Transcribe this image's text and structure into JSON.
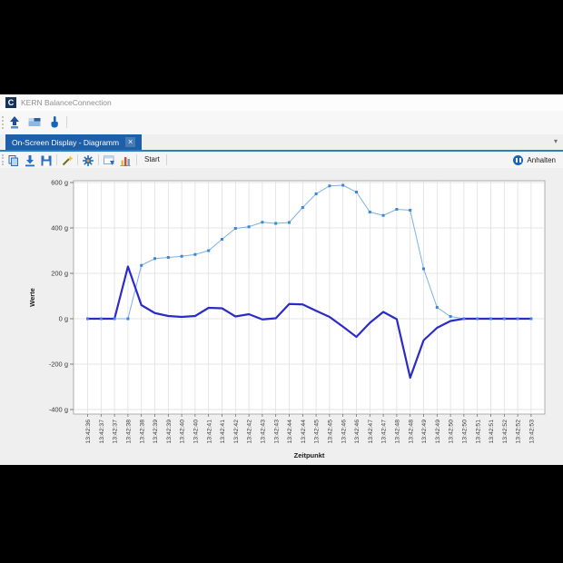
{
  "window": {
    "title": "KERN BalanceConnection",
    "logo_letter": "C"
  },
  "theme": {
    "tab_active_blue": "#1d5fa8",
    "tab_underline_blue": "#2e7cc4",
    "accent_blue": "#1565c0",
    "panel_gray": "#efefef"
  },
  "toolbar_main": {
    "icons": [
      {
        "name": "scale-icon"
      },
      {
        "name": "display-icon"
      },
      {
        "name": "touch-icon"
      }
    ]
  },
  "tab_bar": {
    "tabs": [
      {
        "label": "On-Screen Display - Diagramm",
        "close_glyph": "×",
        "active": true
      }
    ],
    "overflow_glyph": "▾"
  },
  "toolbar_chart": {
    "icons": [
      {
        "name": "copy-icon"
      },
      {
        "name": "import-icon"
      },
      {
        "name": "save-icon"
      },
      {
        "name": "wand-icon"
      },
      {
        "name": "settings-gear-icon"
      },
      {
        "name": "export-window-icon"
      },
      {
        "name": "bar-chart-icon"
      }
    ],
    "start_label": "Start",
    "pause": {
      "icon": "pause-icon",
      "label": "Anhalten"
    }
  },
  "chart_data": {
    "type": "line",
    "xlabel": "Zeitpunkt",
    "ylabel": "Werte",
    "ylim": [
      -400,
      600
    ],
    "ytick_step": 200,
    "ytick_labels": [
      "600 g",
      "400 g",
      "200 g",
      "0 g",
      "-200 g",
      "-400 g"
    ],
    "grid": true,
    "legend": "none",
    "x_labels": [
      "13:42:36",
      "13:42:37",
      "13:42:37",
      "13:42:38",
      "13:42:38",
      "13:42:39",
      "13:42:39",
      "13:42:40",
      "13:42:40",
      "13:42:41",
      "13:42:41",
      "13:42:42",
      "13:42:42",
      "13:42:43",
      "13:42:43",
      "13:42:44",
      "13:42:44",
      "13:42:45",
      "13:42:45",
      "13:42:46",
      "13:42:46",
      "13:42:47",
      "13:42:47",
      "13:42:48",
      "13:42:48",
      "13:42:49",
      "13:42:49",
      "13:42:50",
      "13:42:50",
      "13:42:51",
      "13:42:51",
      "13:42:52",
      "13:42:52",
      "13:42:53"
    ],
    "series": [
      {
        "name": "dark-blue-line",
        "color": "#2b2bc8",
        "line_width": 2.2,
        "markers": false,
        "values": [
          0,
          0,
          0,
          230,
          60,
          25,
          12,
          8,
          12,
          48,
          46,
          10,
          20,
          -3,
          2,
          65,
          63,
          35,
          8,
          -35,
          -80,
          -18,
          30,
          -2,
          -260,
          -95,
          -40,
          -10,
          0,
          0,
          0,
          0,
          0,
          0
        ]
      },
      {
        "name": "light-blue-line",
        "color": "#7db0e8",
        "marker_color": "#3a87d8",
        "line_width": 1,
        "markers": true,
        "values": [
          0,
          0,
          0,
          0,
          235,
          265,
          270,
          275,
          283,
          300,
          350,
          398,
          405,
          425,
          420,
          424,
          490,
          550,
          585,
          588,
          558,
          470,
          455,
          482,
          478,
          220,
          50,
          10,
          0,
          0,
          0,
          0,
          0,
          0
        ]
      }
    ]
  }
}
